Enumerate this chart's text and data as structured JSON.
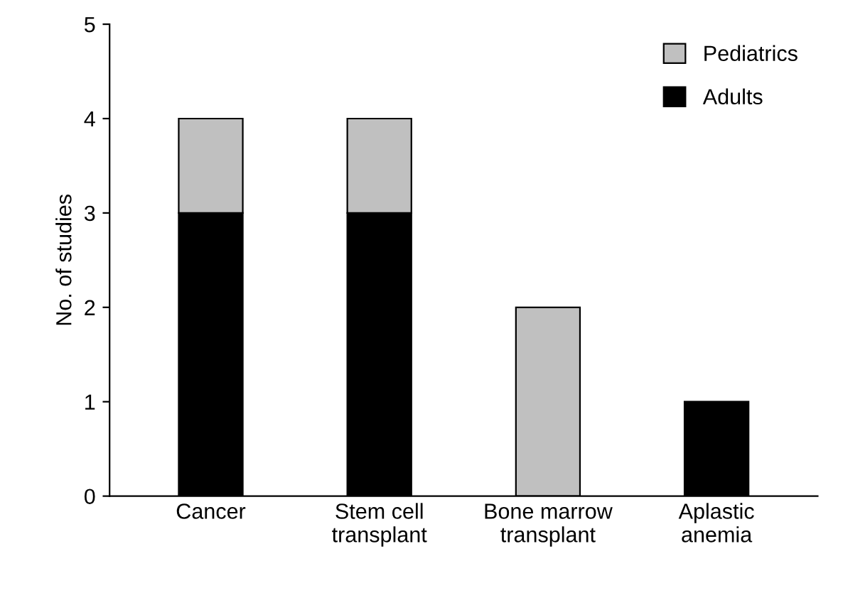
{
  "chart_data": {
    "type": "bar",
    "stacked": true,
    "ylabel": "No. of studies",
    "categories": [
      "Cancer",
      "Stem cell\ntransplant",
      "Bone marrow\ntransplant",
      "Aplastic\nanemia"
    ],
    "series": [
      {
        "name": "Adults",
        "color": "#000000",
        "values": [
          3,
          3,
          0,
          1
        ]
      },
      {
        "name": "Pediatrics",
        "color": "#c0c0c0",
        "values": [
          1,
          1,
          2,
          0
        ]
      }
    ],
    "ylim": [
      0,
      5
    ],
    "yticks": [
      0,
      1,
      2,
      3,
      4,
      5
    ],
    "grid": false,
    "legend": "top right"
  }
}
